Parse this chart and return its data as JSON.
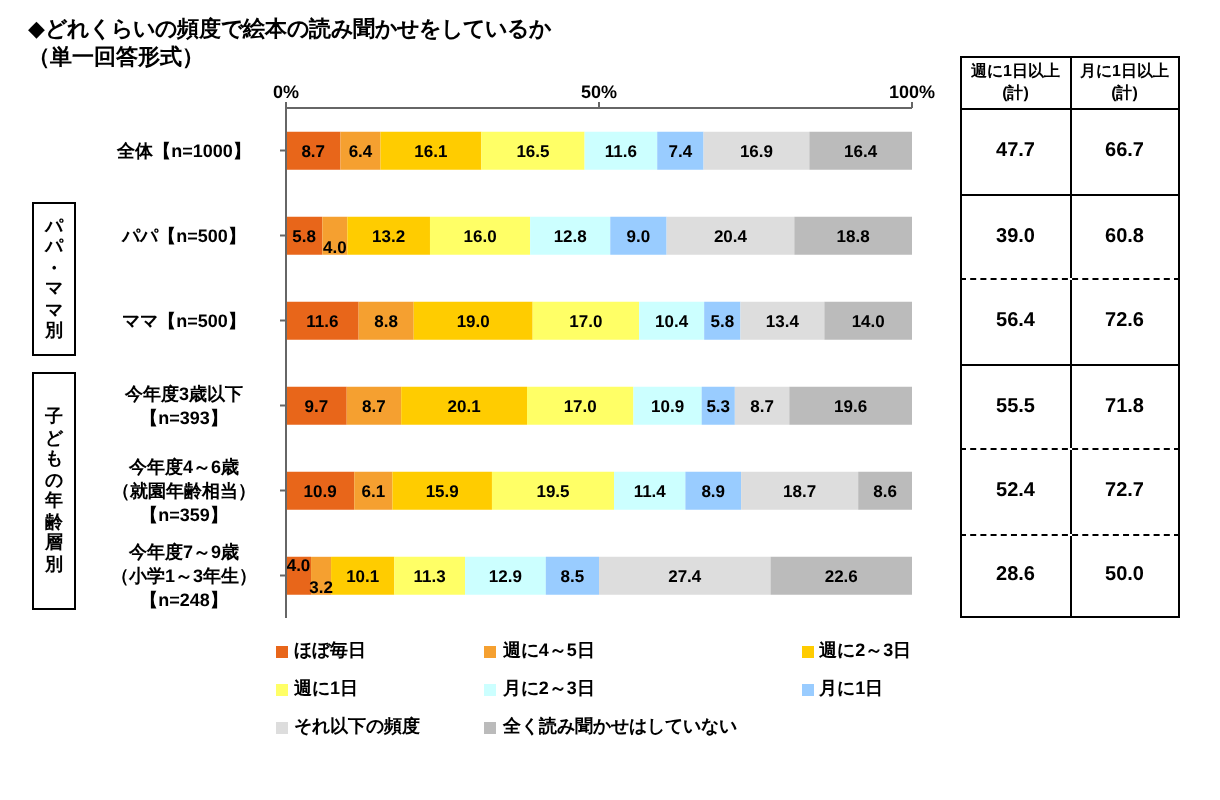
{
  "chart_data": {
    "type": "bar",
    "orientation": "horizontal",
    "stacked": true,
    "title": "◆どれくらいの頻度で絵本の読み聞かせをしているか",
    "subtitle": "（単一回答形式）",
    "categories": [
      "全体【n=1000】",
      "パパ【n=500】",
      "ママ【n=500】",
      "今年度3歳以下【n=393】",
      "今年度4～6歳（就園年齢相当）【n=359】",
      "今年度7～9歳（小学1～3年生）【n=248】"
    ],
    "series": [
      {
        "name": "ほぼ毎日",
        "color": "#e8661a",
        "values": [
          8.7,
          5.8,
          11.6,
          9.7,
          10.9,
          4.0
        ],
        "value_labels": [
          "8.7",
          "5.8",
          "11.6",
          "9.7",
          "10.9",
          "4.0"
        ]
      },
      {
        "name": "週に4～5日",
        "color": "#f5a030",
        "values": [
          6.4,
          4.0,
          8.8,
          8.7,
          6.1,
          3.2
        ],
        "value_labels": [
          "6.4",
          "4.0",
          "8.8",
          "8.7",
          "6.1",
          "3.2"
        ]
      },
      {
        "name": "週に2～3日",
        "color": "#ffcc00",
        "values": [
          16.1,
          13.2,
          19.0,
          20.1,
          15.9,
          10.1
        ],
        "value_labels": [
          "16.1",
          "13.2",
          "19.0",
          "20.1",
          "15.9",
          "10.1"
        ]
      },
      {
        "name": "週に1日",
        "color": "#ffff66",
        "values": [
          16.5,
          16.0,
          17.0,
          17.0,
          19.5,
          11.3
        ],
        "value_labels": [
          "16.5",
          "16.0",
          "17.0",
          "17.0",
          "19.5",
          "11.3"
        ]
      },
      {
        "name": "月に2～3日",
        "color": "#ccffff",
        "values": [
          11.6,
          12.8,
          10.4,
          10.9,
          11.4,
          12.9
        ],
        "value_labels": [
          "11.6",
          "12.8",
          "10.4",
          "10.9",
          "11.4",
          "12.9"
        ]
      },
      {
        "name": "月に1日",
        "color": "#99ccff",
        "values": [
          7.4,
          9.0,
          5.8,
          5.3,
          8.9,
          8.5
        ],
        "value_labels": [
          "7.4",
          "9.0",
          "5.8",
          "5.3",
          "8.9",
          "8.5"
        ]
      },
      {
        "name": "それ以下の頻度",
        "color": "#dddddd",
        "values": [
          16.9,
          20.4,
          13.4,
          8.7,
          18.7,
          27.4
        ],
        "value_labels": [
          "16.9",
          "20.4",
          "13.4",
          "8.7",
          "18.7",
          "27.4"
        ]
      },
      {
        "name": "全く読み聞かせはしていない",
        "color": "#bbbbbb",
        "values": [
          16.4,
          18.8,
          14.0,
          19.6,
          8.6,
          22.6
        ],
        "value_labels": [
          "16.4",
          "18.8",
          "14.0",
          "19.6",
          "8.6",
          "22.6"
        ]
      }
    ],
    "xlim": [
      0,
      100
    ],
    "xticks": [
      {
        "value": 0,
        "label": "0%"
      },
      {
        "value": 50,
        "label": "50%"
      },
      {
        "value": 100,
        "label": "100%"
      }
    ],
    "legend": "bottom",
    "annotations": [
      "パパ・ママ別",
      "子どもの年齢層別",
      "週に1日以上(計)",
      "月に1日以上(計)",
      "47.7",
      "66.7",
      "39.0",
      "60.8",
      "56.4",
      "72.6",
      "55.5",
      "71.8",
      "52.4",
      "72.7",
      "28.6",
      "50.0"
    ]
  }
}
